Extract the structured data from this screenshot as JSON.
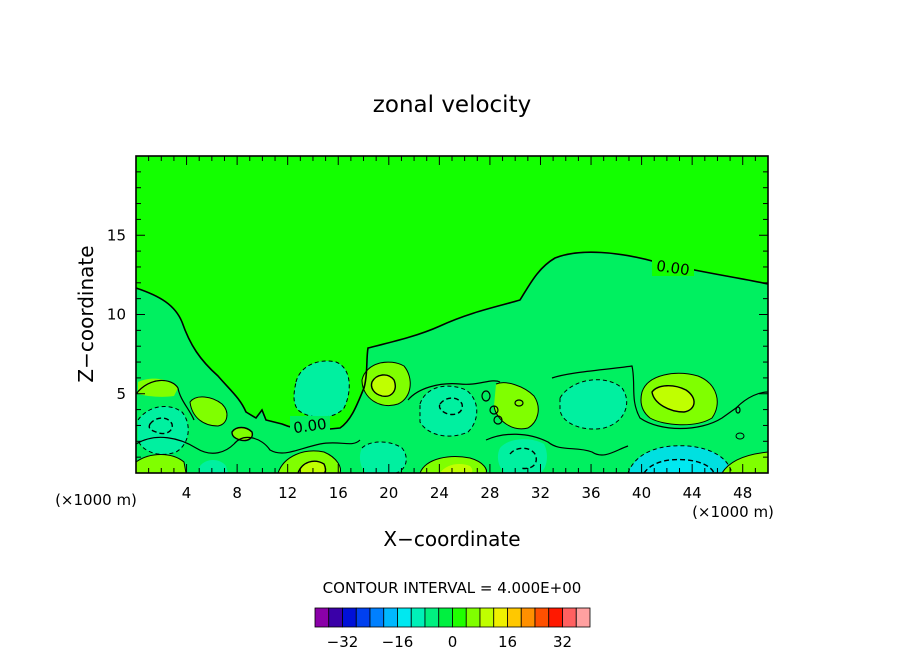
{
  "chart_data": {
    "type": "contour",
    "title": "zonal velocity",
    "xlabel": "X−coordinate",
    "ylabel": "Z−coordinate",
    "x_unit": "(×1000 m)",
    "y_unit": "(×1000 m)",
    "xlim": [
      0,
      50
    ],
    "ylim": [
      0,
      20
    ],
    "x_ticks": [
      4,
      8,
      12,
      16,
      20,
      24,
      28,
      32,
      36,
      40,
      44,
      48
    ],
    "y_ticks": [
      5,
      10,
      15
    ],
    "zero_contour_labels": [
      "0.00",
      "0.00"
    ],
    "contour_interval_text": "CONTOUR INTERVAL = 4.000E+00",
    "colorbar": {
      "levels": [
        -36,
        -32,
        -28,
        -24,
        -20,
        -16,
        -12,
        -8,
        -4,
        0,
        4,
        8,
        12,
        16,
        20,
        24,
        28,
        32,
        36
      ],
      "tick_labels": [
        "−32",
        "−16",
        "0",
        "16",
        "32"
      ],
      "tick_values": [
        -32,
        -16,
        0,
        16,
        32
      ],
      "colors": [
        "#8a00a8",
        "#3a00a8",
        "#0010d8",
        "#0040f0",
        "#0080ff",
        "#00b8ff",
        "#00e8f0",
        "#00f0b8",
        "#00f080",
        "#00f040",
        "#20ff00",
        "#80ff00",
        "#c0ff00",
        "#f0f000",
        "#ffc800",
        "#ff9000",
        "#ff5000",
        "#ff1800",
        "#ff6060",
        "#ffa0a0"
      ]
    },
    "colors": {
      "zero": "#13ff00",
      "neg_weak": "#00f060",
      "neg_mid": "#00f0a0",
      "neg_strong": "#00e0e0",
      "pos_weak": "#80ff00",
      "pos_mid": "#c0ff00"
    }
  }
}
